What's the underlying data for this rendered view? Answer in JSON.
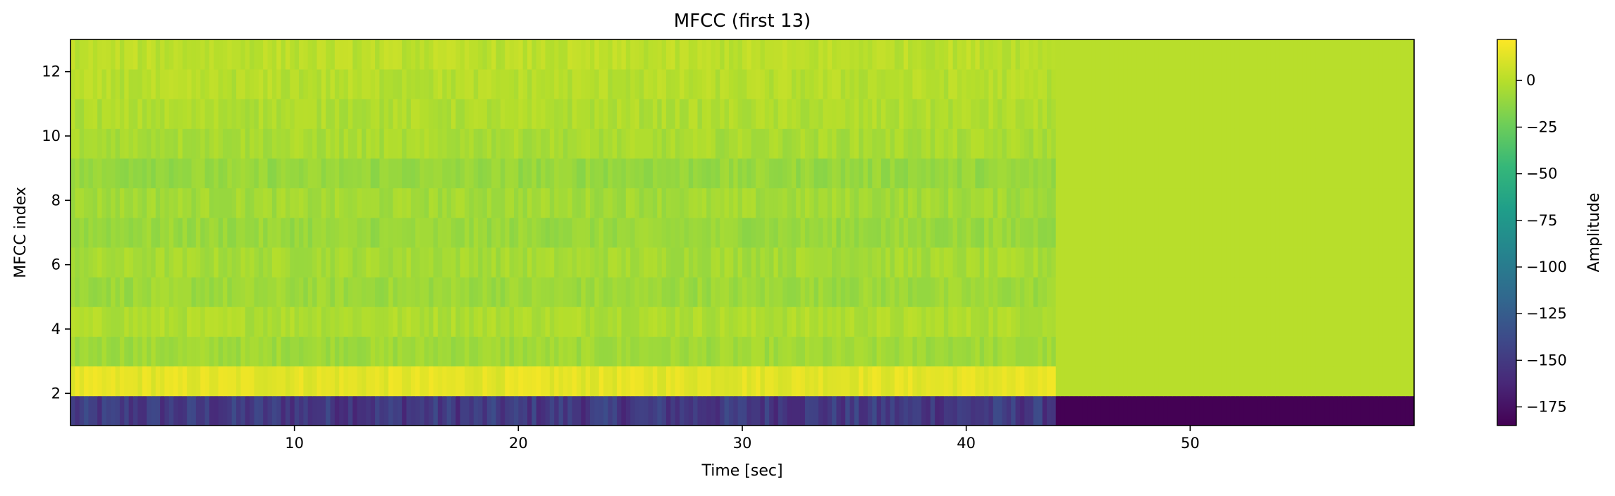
{
  "chart_data": {
    "type": "heatmap",
    "title": "MFCC (first 13)",
    "xlabel": "Time [sec]",
    "ylabel": "MFCC index",
    "xlim": [
      0,
      60
    ],
    "ylim": [
      1,
      13
    ],
    "x_ticks": [
      10,
      20,
      30,
      40,
      50
    ],
    "y_ticks": [
      2,
      4,
      6,
      8,
      10,
      12
    ],
    "colormap": "viridis",
    "colorbar": {
      "label": "Amplitude",
      "range": [
        -185,
        22
      ],
      "ticks": [
        0,
        -25,
        -50,
        -75,
        -100,
        -125,
        -150,
        -175
      ]
    },
    "signal_end_sec": 44,
    "rows": [
      {
        "index": 1,
        "mean_active": -150,
        "value_silent": -185
      },
      {
        "index": 2,
        "mean_active": 14,
        "value_silent": 0
      },
      {
        "index": 3,
        "mean_active": -8,
        "value_silent": 0
      },
      {
        "index": 4,
        "mean_active": -3,
        "value_silent": 0
      },
      {
        "index": 5,
        "mean_active": -9,
        "value_silent": 0
      },
      {
        "index": 6,
        "mean_active": -6,
        "value_silent": 0
      },
      {
        "index": 7,
        "mean_active": -10,
        "value_silent": 0
      },
      {
        "index": 8,
        "mean_active": -7,
        "value_silent": 0
      },
      {
        "index": 9,
        "mean_active": -11,
        "value_silent": 0
      },
      {
        "index": 10,
        "mean_active": -5,
        "value_silent": 0
      },
      {
        "index": 11,
        "mean_active": -3,
        "value_silent": 0
      },
      {
        "index": 12,
        "mean_active": -1,
        "value_silent": 0
      },
      {
        "index": 13,
        "mean_active": 1,
        "value_silent": 0
      }
    ]
  }
}
